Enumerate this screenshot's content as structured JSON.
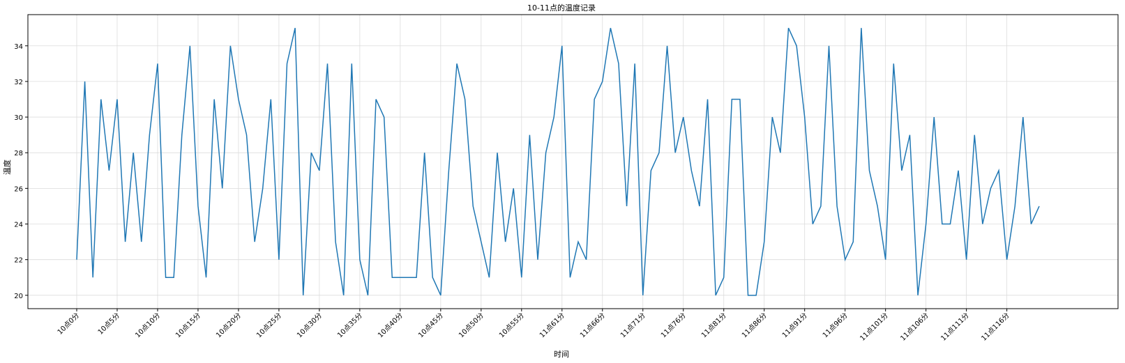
{
  "chart_data": {
    "type": "line",
    "title": "10-11点的温度记录",
    "xlabel": "时间",
    "ylabel": "温度",
    "grid": true,
    "line_color": "#1f77b4",
    "ylim": [
      19.25,
      35.75
    ],
    "yticks": [
      20,
      22,
      24,
      26,
      28,
      30,
      32,
      34
    ],
    "xtick_step": 5,
    "xtick_labels": [
      "10点0分",
      "10点5分",
      "10点10分",
      "10点15分",
      "10点20分",
      "10点25分",
      "10点30分",
      "10点35分",
      "10点40分",
      "10点45分",
      "10点50分",
      "10点55分",
      "11点61分",
      "11点66分",
      "11点71分",
      "11点76分",
      "11点81分",
      "11点86分",
      "11点91分",
      "11点96分",
      "11点101分",
      "11点106分",
      "11点111分",
      "11点116分"
    ],
    "series": [
      {
        "values": [
          22,
          32,
          21,
          31,
          27,
          31,
          23,
          28,
          23,
          29,
          33,
          21,
          21,
          29,
          34,
          25,
          21,
          31,
          26,
          34,
          31,
          29,
          23,
          26,
          31,
          22,
          33,
          35,
          20,
          28,
          27,
          33,
          23,
          20,
          33,
          22,
          20,
          31,
          30,
          21,
          21,
          21,
          21,
          28,
          21,
          20,
          27,
          33,
          31,
          25,
          23,
          21,
          28,
          23,
          26,
          21,
          29,
          22,
          28,
          30,
          34,
          21,
          23,
          22,
          31,
          32,
          35,
          33,
          25,
          33,
          20,
          27,
          28,
          34,
          28,
          30,
          27,
          25,
          31,
          20,
          21,
          31,
          31,
          20,
          20,
          23,
          30,
          28,
          35,
          34,
          30,
          24,
          25,
          34,
          25,
          22,
          23,
          35,
          27,
          25,
          22,
          33,
          27,
          29,
          20,
          24,
          30,
          24,
          24,
          27,
          22,
          29,
          24,
          26,
          27,
          22,
          25,
          30,
          24,
          25
        ]
      }
    ]
  }
}
